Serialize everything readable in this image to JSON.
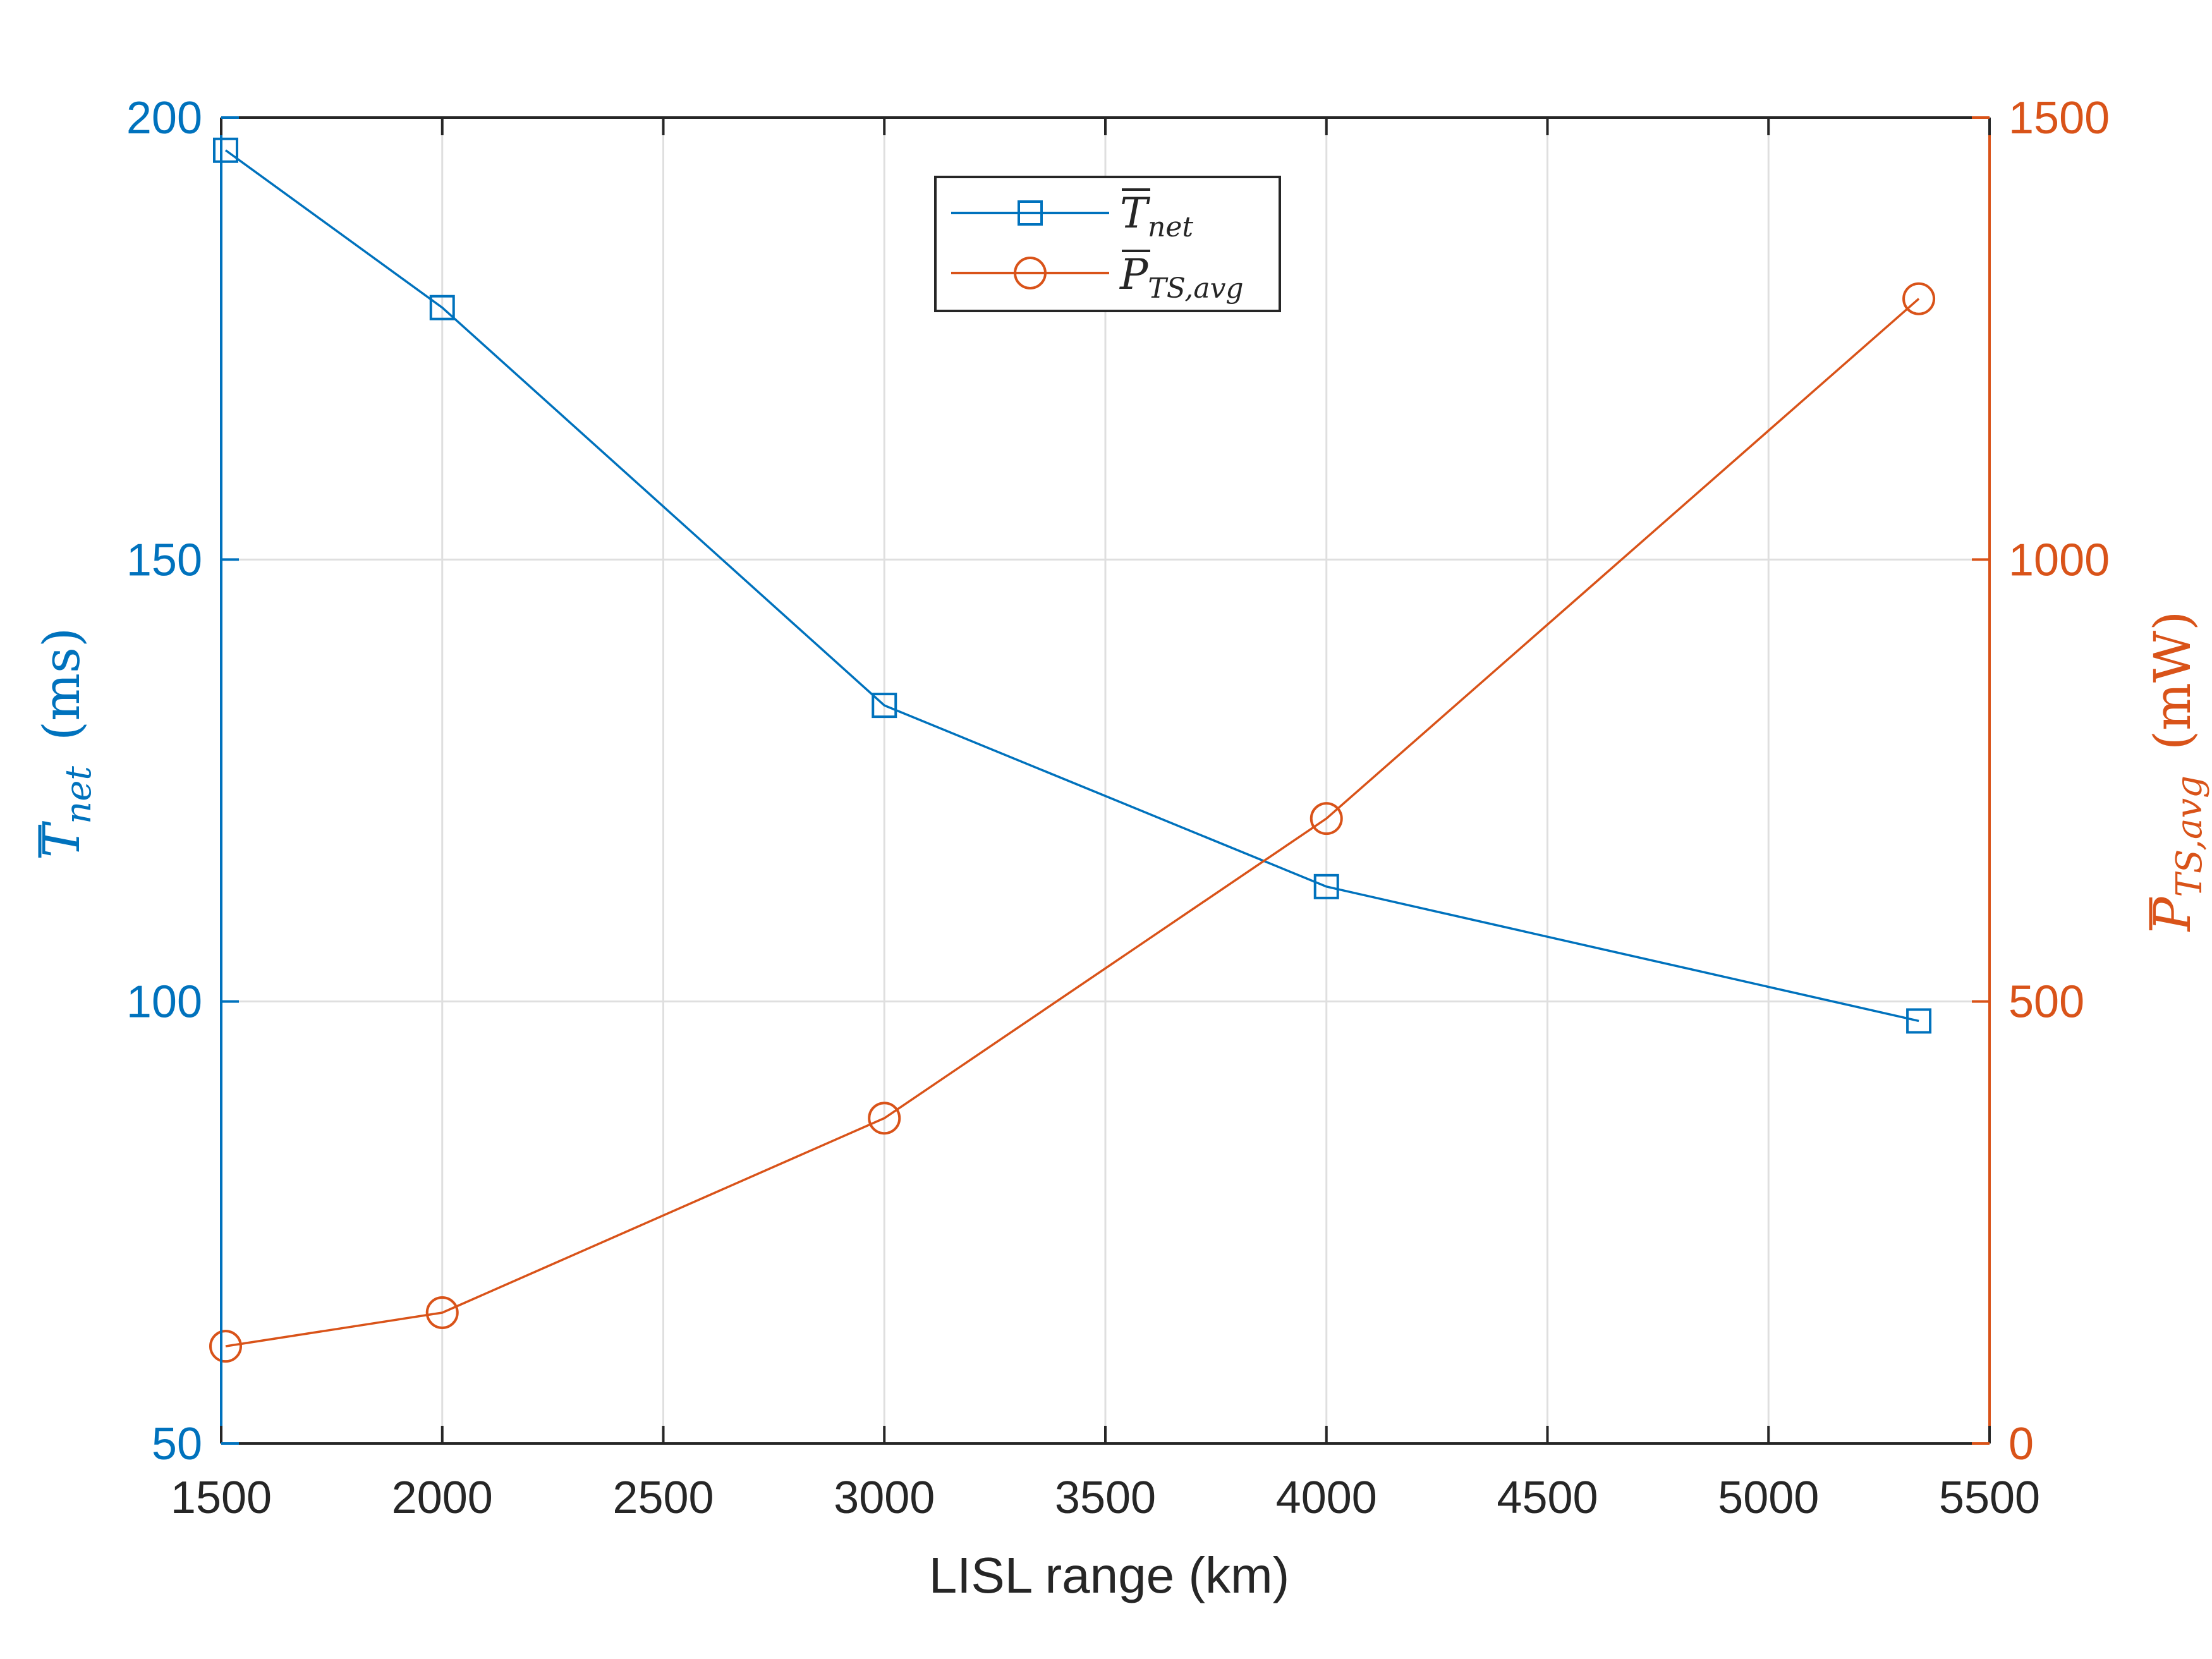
{
  "chart_data": {
    "type": "line",
    "xlabel": "LISL range (km)",
    "xlim": [
      1500,
      5500
    ],
    "x_ticks": [
      1500,
      2000,
      2500,
      3000,
      3500,
      4000,
      4500,
      5000,
      5500
    ],
    "grid": true,
    "legend_position": "top-center",
    "colors": {
      "left": "#0072BD",
      "right": "#D95319",
      "axes": "#262626",
      "grid": "#DFDFDF"
    },
    "left_axis": {
      "ylabel_symbol": "T",
      "ylabel_subscript": "net",
      "ylabel_unit": "(ms)",
      "ylim": [
        50,
        200
      ],
      "ticks": [
        50,
        100,
        150,
        200
      ]
    },
    "right_axis": {
      "ylabel_symbol": "P",
      "ylabel_subscript": "TS,avg",
      "ylabel_unit": "(mW)",
      "ylim": [
        0,
        1500
      ],
      "ticks": [
        0,
        500,
        1000,
        1500
      ]
    },
    "series": [
      {
        "name": "T_net",
        "legend_symbol": "T",
        "legend_subscript": "net",
        "axis": "left",
        "marker": "square",
        "x": [
          1510,
          2000,
          3000,
          4000,
          5340
        ],
        "y": [
          196.3,
          178.5,
          133.5,
          113,
          97.8
        ]
      },
      {
        "name": "P_TS,avg",
        "legend_symbol": "P",
        "legend_subscript": "TS,avg",
        "axis": "right",
        "marker": "circle",
        "x": [
          1510,
          2000,
          3000,
          4000,
          5340
        ],
        "y": [
          110,
          148,
          368,
          707,
          1295
        ]
      }
    ]
  }
}
